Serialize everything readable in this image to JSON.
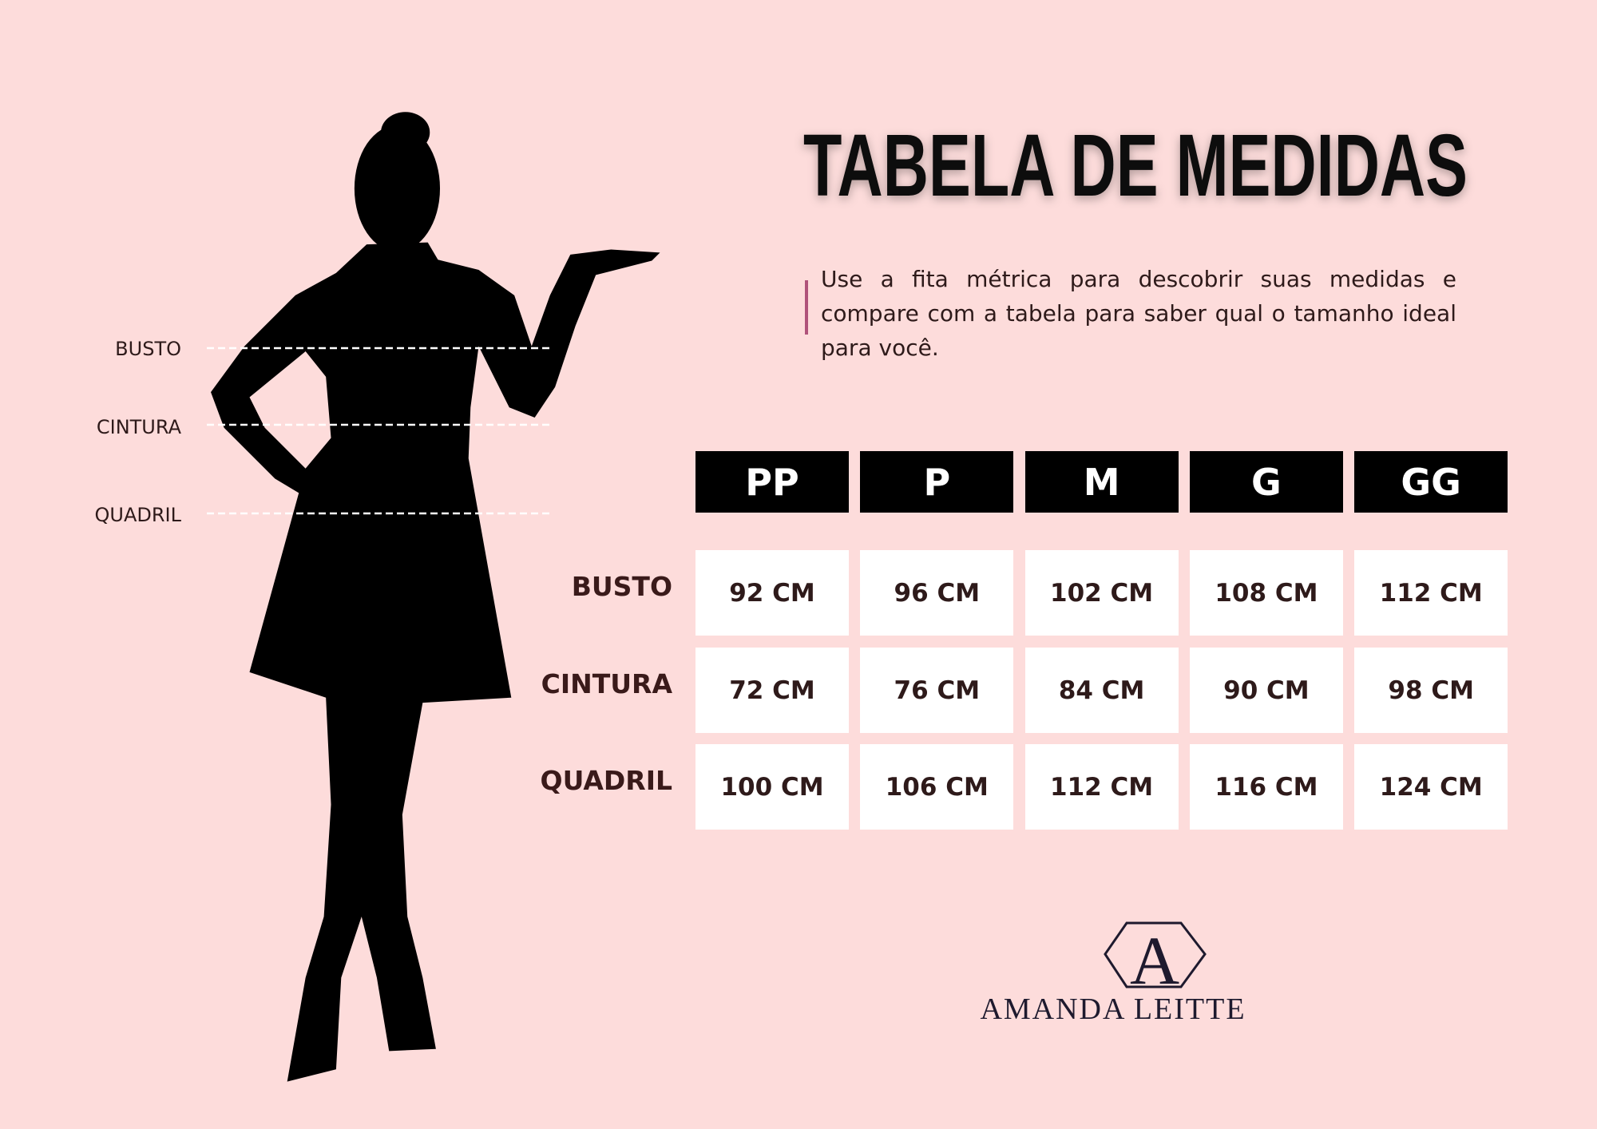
{
  "header": {
    "title": "TABELA DE MEDIDAS",
    "description": "Use a fita métrica para descobrir suas medidas e compare com a tabela para saber qual o tamanho ideal para você."
  },
  "figure": {
    "labels": [
      "BUSTO",
      "CINTURA",
      "QUADRIL"
    ]
  },
  "table": {
    "columns": [
      "PP",
      "P",
      "M",
      "G",
      "GG"
    ],
    "rows": [
      {
        "label": "BUSTO",
        "cells": [
          "92 CM",
          "96 CM",
          "102 CM",
          "108 CM",
          "112 CM"
        ]
      },
      {
        "label": "CINTURA",
        "cells": [
          "72 CM",
          "76 CM",
          "84 CM",
          "90 CM",
          "98 CM"
        ]
      },
      {
        "label": "QUADRIL",
        "cells": [
          "100 CM",
          "106 CM",
          "112 CM",
          "116 CM",
          "124 CM"
        ]
      }
    ]
  },
  "brand": {
    "monogram": "A",
    "name": "AMANDA LEITTE"
  }
}
